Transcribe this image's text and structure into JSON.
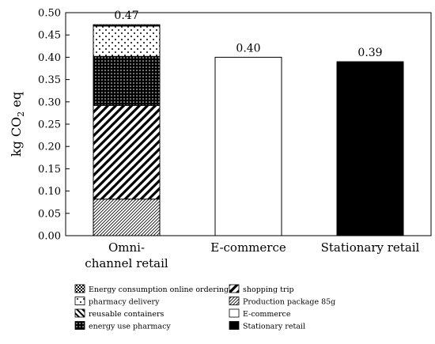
{
  "chart_data": {
    "type": "bar",
    "stacked": true,
    "ylabel": "kg CO",
    "ylabel_subscript": "2",
    "ylabel_suffix": " eq",
    "ylim": [
      0,
      0.5
    ],
    "yticks": [
      "0.00",
      "0.05",
      "0.10",
      "0.15",
      "0.20",
      "0.25",
      "0.30",
      "0.35",
      "0.40",
      "0.45",
      "0.50"
    ],
    "categories": [
      {
        "lines": [
          "Omni-",
          "channel retail"
        ]
      },
      {
        "lines": [
          "E-commerce"
        ]
      },
      {
        "lines": [
          "Stationary retail"
        ]
      }
    ],
    "totals": [
      "0.47",
      "0.40",
      "0.39"
    ],
    "series": [
      {
        "name": "Production package 85g",
        "pattern": "diag-fine",
        "values": [
          0.082,
          0,
          0
        ]
      },
      {
        "name": "shopping trip",
        "pattern": "diag-bold",
        "values": [
          0.21,
          0,
          0
        ]
      },
      {
        "name": "energy use pharmacy",
        "pattern": "dots-dense",
        "values": [
          0.11,
          0,
          0
        ]
      },
      {
        "name": "pharmacy delivery",
        "pattern": "dots-sparse",
        "values": [
          0.068,
          0,
          0
        ]
      },
      {
        "name": "reusable containers",
        "pattern": "diag-back",
        "values": [
          0.001,
          0,
          0
        ]
      },
      {
        "name": "Energy consumption online ordering",
        "pattern": "checker",
        "values": [
          0.002,
          0,
          0
        ]
      },
      {
        "name": "E-commerce",
        "pattern": "white",
        "values": [
          0,
          0.4,
          0
        ]
      },
      {
        "name": "Stationary retail",
        "pattern": "black",
        "values": [
          0,
          0,
          0.39
        ]
      }
    ],
    "legend_order": [
      "Energy consumption online ordering",
      "shopping trip",
      "pharmacy delivery",
      "Production package 85g",
      "reusable containers",
      "E-commerce",
      "energy use pharmacy",
      "Stationary retail"
    ],
    "legend_position": "bottom",
    "grid": false
  }
}
